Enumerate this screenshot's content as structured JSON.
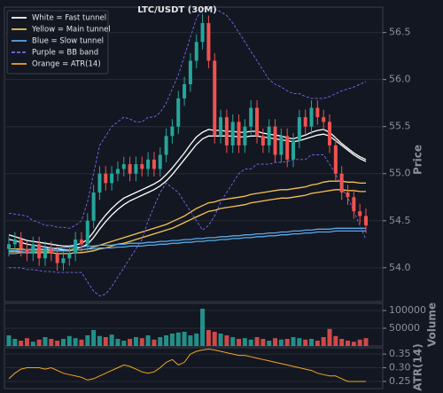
{
  "chart_data": [
    {
      "type": "candlestick",
      "title": "LTC/USDT (30M)",
      "ylabel": "Price",
      "up_color": "#26a69a",
      "down_color": "#ef5350",
      "grid": true,
      "ylim": [
        53.64,
        56.77
      ],
      "yticks": [
        {
          "value": 54,
          "label": "54.0"
        },
        54.5,
        {
          "value": 55,
          "label": "55.0"
        },
        55.5,
        {
          "value": 56,
          "label": "56.0"
        },
        56.5
      ],
      "open": [
        54.2,
        54.25,
        54.3,
        54.2,
        54.15,
        54.25,
        54.1,
        54.2,
        54.15,
        54.05,
        54.1,
        54.15,
        54.3,
        54.25,
        54.5,
        54.8,
        55.0,
        54.9,
        55.0,
        55.05,
        55.1,
        55.0,
        55.1,
        55.05,
        55.15,
        55.05,
        55.2,
        55.4,
        55.5,
        55.8,
        55.95,
        56.2,
        56.4,
        56.6,
        56.2,
        55.4,
        55.6,
        55.3,
        55.55,
        55.3,
        55.5,
        55.7,
        55.4,
        55.3,
        55.5,
        55.2,
        55.4,
        55.15,
        55.35,
        55.6,
        55.5,
        55.7,
        55.6,
        55.55,
        55.3,
        55.0,
        54.8,
        54.75,
        54.6,
        54.55
      ],
      "high": [
        54.33,
        54.38,
        54.38,
        54.28,
        54.33,
        54.33,
        54.28,
        54.28,
        54.23,
        54.18,
        54.23,
        54.38,
        54.38,
        54.58,
        54.88,
        55.08,
        55.08,
        55.08,
        55.13,
        55.18,
        55.18,
        55.18,
        55.18,
        55.23,
        55.23,
        55.28,
        55.48,
        55.58,
        55.88,
        56.03,
        56.28,
        56.48,
        56.7,
        56.68,
        56.28,
        55.68,
        55.68,
        55.63,
        55.63,
        55.58,
        55.78,
        55.78,
        55.48,
        55.58,
        55.58,
        55.48,
        55.48,
        55.43,
        55.68,
        55.68,
        55.78,
        55.78,
        55.68,
        55.63,
        55.38,
        55.08,
        54.88,
        54.83,
        54.68,
        54.63
      ],
      "low": [
        54.12,
        54.17,
        54.12,
        54.07,
        54.07,
        54.02,
        54.02,
        54.07,
        53.97,
        53.97,
        54.02,
        54.07,
        54.17,
        54.17,
        54.42,
        54.72,
        54.82,
        54.82,
        54.92,
        54.97,
        54.92,
        54.92,
        54.97,
        54.97,
        54.97,
        54.97,
        55.12,
        55.32,
        55.42,
        55.72,
        55.87,
        56.12,
        56.32,
        56.12,
        55.32,
        55.32,
        55.22,
        55.22,
        55.22,
        55.22,
        55.42,
        55.32,
        55.22,
        55.22,
        55.12,
        55.12,
        55.07,
        55.07,
        55.27,
        55.42,
        55.42,
        55.52,
        55.47,
        55.22,
        54.92,
        54.72,
        54.67,
        54.52,
        54.47,
        54.37
      ],
      "close": [
        54.25,
        54.3,
        54.2,
        54.15,
        54.25,
        54.1,
        54.2,
        54.15,
        54.05,
        54.1,
        54.15,
        54.3,
        54.25,
        54.5,
        54.8,
        55.0,
        54.9,
        55.0,
        55.05,
        55.1,
        55.0,
        55.1,
        55.05,
        55.15,
        55.05,
        55.2,
        55.4,
        55.5,
        55.8,
        55.95,
        56.2,
        56.4,
        56.6,
        56.2,
        55.4,
        55.6,
        55.3,
        55.55,
        55.3,
        55.5,
        55.7,
        55.4,
        55.3,
        55.5,
        55.2,
        55.4,
        55.15,
        55.35,
        55.6,
        55.5,
        55.7,
        55.6,
        55.55,
        55.3,
        55.0,
        54.8,
        54.75,
        54.6,
        54.55,
        54.45
      ],
      "series": [
        {
          "name": "White = Fast tunnel",
          "color": "#ffffff",
          "dashed": false,
          "lines": [
            [
              54.35,
              54.33,
              54.31,
              54.29,
              54.28,
              54.27,
              54.26,
              54.25,
              54.24,
              54.23,
              54.23,
              54.24,
              54.26,
              54.3,
              54.38,
              54.48,
              54.56,
              54.63,
              54.69,
              54.74,
              54.77,
              54.8,
              54.83,
              54.86,
              54.89,
              54.93,
              54.99,
              55.06,
              55.14,
              55.22,
              55.31,
              55.39,
              55.44,
              55.47,
              55.46,
              55.46,
              55.45,
              55.45,
              55.44,
              55.44,
              55.45,
              55.45,
              55.43,
              55.42,
              55.41,
              55.4,
              55.38,
              55.37,
              55.39,
              55.41,
              55.44,
              55.46,
              55.47,
              55.44,
              55.38,
              55.32,
              55.27,
              55.22,
              55.18,
              55.15
            ],
            [
              54.3,
              54.29,
              54.27,
              54.25,
              54.24,
              54.23,
              54.22,
              54.21,
              54.2,
              54.19,
              54.19,
              54.2,
              54.22,
              54.25,
              54.32,
              54.41,
              54.49,
              54.56,
              54.62,
              54.67,
              54.71,
              54.74,
              54.77,
              54.8,
              54.83,
              54.87,
              54.92,
              54.99,
              55.07,
              55.15,
              55.23,
              55.31,
              55.37,
              55.4,
              55.4,
              55.4,
              55.4,
              55.4,
              55.39,
              55.39,
              55.4,
              55.4,
              55.39,
              55.38,
              55.37,
              55.36,
              55.35,
              55.34,
              55.35,
              55.37,
              55.39,
              55.41,
              55.42,
              55.4,
              55.35,
              55.3,
              55.25,
              55.2,
              55.16,
              55.13
            ]
          ]
        },
        {
          "name": "Yellow = Main tunnel",
          "color": "#f5c451",
          "dashed": false,
          "lines": [
            [
              54.2,
              54.2,
              54.2,
              54.19,
              54.19,
              54.19,
              54.19,
              54.19,
              54.18,
              54.18,
              54.18,
              54.19,
              54.19,
              54.2,
              54.22,
              54.24,
              54.26,
              54.28,
              54.3,
              54.32,
              54.34,
              54.36,
              54.38,
              54.4,
              54.42,
              54.44,
              54.46,
              54.49,
              54.52,
              54.55,
              54.59,
              54.63,
              54.66,
              54.69,
              54.7,
              54.72,
              54.73,
              54.74,
              54.75,
              54.76,
              54.78,
              54.79,
              54.8,
              54.81,
              54.82,
              54.83,
              54.83,
              54.84,
              54.85,
              54.86,
              54.88,
              54.89,
              54.91,
              54.92,
              54.92,
              54.92,
              54.91,
              54.91,
              54.9,
              54.9
            ],
            [
              54.17,
              54.17,
              54.17,
              54.16,
              54.16,
              54.16,
              54.16,
              54.16,
              54.15,
              54.15,
              54.15,
              54.16,
              54.16,
              54.17,
              54.18,
              54.2,
              54.21,
              54.23,
              54.25,
              54.26,
              54.28,
              54.3,
              54.32,
              54.34,
              54.36,
              54.38,
              54.4,
              54.42,
              54.45,
              54.48,
              54.51,
              54.54,
              54.57,
              54.6,
              54.61,
              54.63,
              54.64,
              54.65,
              54.66,
              54.67,
              54.69,
              54.7,
              54.71,
              54.72,
              54.73,
              54.74,
              54.74,
              54.75,
              54.76,
              54.77,
              54.79,
              54.8,
              54.81,
              54.82,
              54.83,
              54.83,
              54.82,
              54.82,
              54.81,
              54.81
            ]
          ]
        },
        {
          "name": "Blue = Slow tunnel",
          "color": "#5aa9e6",
          "dashed": false,
          "lines": [
            [
              54.18,
              54.18,
              54.19,
              54.19,
              54.2,
              54.2,
              54.2,
              54.21,
              54.21,
              54.21,
              54.22,
              54.22,
              54.22,
              54.23,
              54.23,
              54.24,
              54.24,
              54.24,
              54.25,
              54.25,
              54.26,
              54.26,
              54.26,
              54.27,
              54.27,
              54.28,
              54.28,
              54.29,
              54.29,
              54.3,
              54.3,
              54.31,
              54.31,
              54.32,
              54.32,
              54.33,
              54.33,
              54.34,
              54.34,
              54.35,
              54.35,
              54.36,
              54.36,
              54.37,
              54.37,
              54.38,
              54.38,
              54.39,
              54.39,
              54.4,
              54.4,
              54.41,
              54.41,
              54.41,
              54.42,
              54.42,
              54.42,
              54.42,
              54.42,
              54.42
            ],
            [
              54.15,
              54.15,
              54.16,
              54.16,
              54.17,
              54.17,
              54.17,
              54.18,
              54.18,
              54.18,
              54.19,
              54.19,
              54.19,
              54.2,
              54.2,
              54.21,
              54.21,
              54.21,
              54.22,
              54.22,
              54.23,
              54.23,
              54.23,
              54.24,
              54.24,
              54.25,
              54.25,
              54.26,
              54.26,
              54.27,
              54.27,
              54.28,
              54.28,
              54.29,
              54.29,
              54.3,
              54.3,
              54.31,
              54.31,
              54.32,
              54.32,
              54.33,
              54.33,
              54.34,
              54.34,
              54.35,
              54.35,
              54.36,
              54.36,
              54.37,
              54.37,
              54.38,
              54.38,
              54.38,
              54.39,
              54.39,
              54.39,
              54.39,
              54.39,
              54.39
            ]
          ]
        },
        {
          "name": "Purple = BB band",
          "color": "#7b68ee",
          "dashed": true,
          "lines": [
            [
              54.58,
              54.57,
              54.56,
              54.55,
              54.5,
              54.48,
              54.45,
              54.45,
              54.43,
              54.43,
              54.42,
              54.45,
              54.5,
              54.7,
              55.0,
              55.3,
              55.4,
              55.5,
              55.55,
              55.6,
              55.58,
              55.55,
              55.55,
              55.6,
              55.6,
              55.65,
              55.75,
              55.9,
              56.05,
              56.25,
              56.45,
              56.65,
              56.75,
              56.78,
              56.75,
              56.72,
              56.68,
              56.6,
              56.5,
              56.4,
              56.3,
              56.2,
              56.1,
              56.0,
              55.95,
              55.92,
              55.88,
              55.85,
              55.85,
              55.82,
              55.8,
              55.8,
              55.8,
              55.82,
              55.85,
              55.88,
              55.9,
              55.92,
              55.95,
              55.98
            ],
            [
              54.0,
              54.0,
              54.0,
              53.98,
              53.98,
              53.97,
              53.96,
              53.96,
              53.95,
              53.95,
              53.95,
              53.95,
              53.95,
              53.85,
              53.75,
              53.7,
              53.72,
              53.8,
              53.9,
              54.0,
              54.1,
              54.2,
              54.3,
              54.5,
              54.65,
              54.8,
              54.9,
              54.85,
              54.8,
              54.7,
              54.6,
              54.5,
              54.4,
              54.45,
              54.55,
              54.7,
              54.8,
              54.9,
              55.0,
              55.05,
              55.05,
              55.1,
              55.1,
              55.1,
              55.12,
              55.12,
              55.13,
              55.15,
              55.15,
              55.15,
              55.2,
              55.2,
              55.2,
              55.1,
              55.0,
              54.85,
              54.75,
              54.6,
              54.45,
              54.3
            ]
          ]
        }
      ]
    },
    {
      "type": "bar",
      "ylabel": "Volume",
      "grid": true,
      "ylim": [
        0,
        120000
      ],
      "yticks": [
        50000,
        100000
      ],
      "values": [
        30000,
        20000,
        15000,
        22000,
        12000,
        18000,
        25000,
        20000,
        15000,
        20000,
        28000,
        22000,
        18000,
        30000,
        45000,
        28000,
        25000,
        32000,
        20000,
        15000,
        20000,
        25000,
        22000,
        30000,
        18000,
        25000,
        30000,
        35000,
        38000,
        40000,
        30000,
        35000,
        105000,
        45000,
        40000,
        35000,
        30000,
        25000,
        20000,
        22000,
        18000,
        25000,
        20000,
        15000,
        22000,
        18000,
        20000,
        25000,
        22000,
        18000,
        20000,
        15000,
        25000,
        48000,
        28000,
        20000,
        15000,
        12000,
        18000,
        22000
      ]
    },
    {
      "type": "line",
      "ylabel": "ATR(14)",
      "grid": true,
      "ylim": [
        0.224,
        0.373
      ],
      "yticks": [
        0.25,
        {
          "value": 0.3,
          "label": "0.30"
        },
        0.35
      ],
      "series": [
        {
          "name": "Orange = ATR(14)",
          "color": "#f5a623",
          "values": [
            0.26,
            0.28,
            0.295,
            0.3,
            0.3,
            0.3,
            0.295,
            0.3,
            0.29,
            0.28,
            0.275,
            0.27,
            0.265,
            0.255,
            0.26,
            0.27,
            0.28,
            0.29,
            0.3,
            0.31,
            0.305,
            0.295,
            0.285,
            0.28,
            0.285,
            0.3,
            0.32,
            0.33,
            0.31,
            0.32,
            0.35,
            0.36,
            0.365,
            0.368,
            0.365,
            0.36,
            0.355,
            0.35,
            0.345,
            0.345,
            0.34,
            0.335,
            0.33,
            0.325,
            0.32,
            0.315,
            0.31,
            0.305,
            0.3,
            0.295,
            0.29,
            0.28,
            0.275,
            0.27,
            0.27,
            0.26,
            0.25,
            0.25,
            0.25,
            0.25
          ]
        }
      ]
    }
  ]
}
